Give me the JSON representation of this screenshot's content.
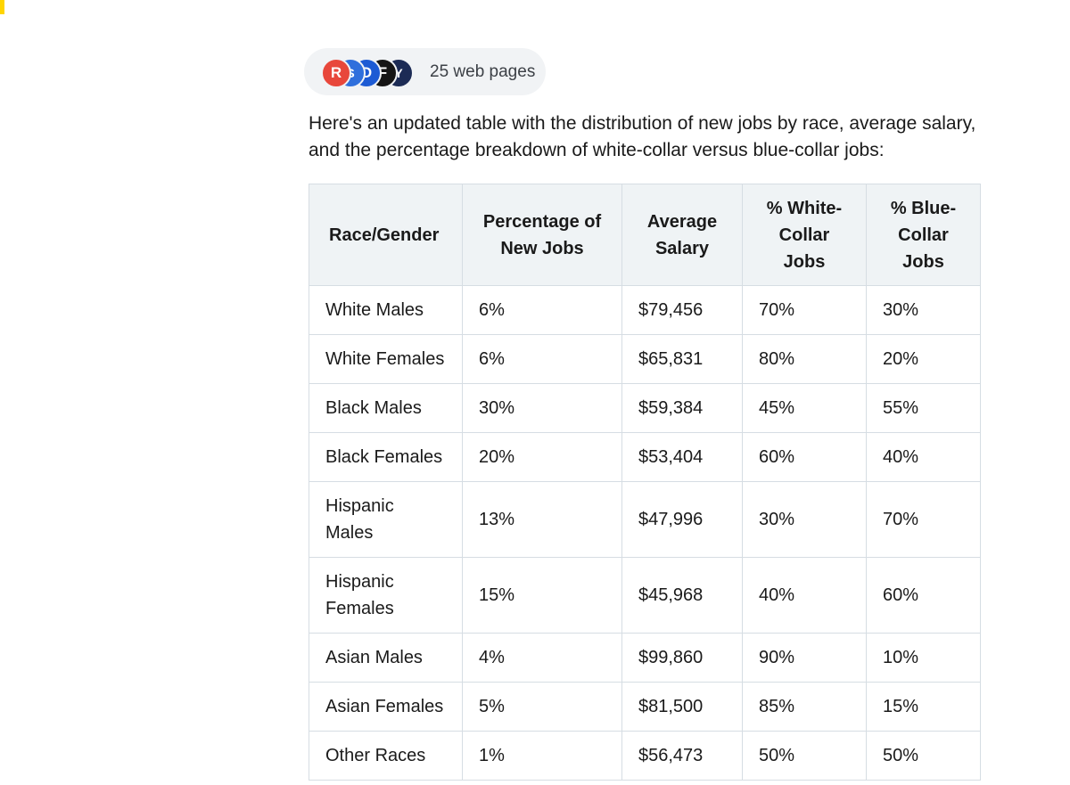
{
  "sources": {
    "label": "25 web pages",
    "favicons": [
      {
        "name": "site-favicon-1",
        "glyph": "R",
        "color": "#e8473b"
      },
      {
        "name": "site-favicon-2",
        "glyph": "S",
        "color": "#2f6fdc"
      },
      {
        "name": "site-favicon-3",
        "glyph": "D",
        "color": "#1d5bd4"
      },
      {
        "name": "site-favicon-4",
        "glyph": "F",
        "color": "#151515"
      },
      {
        "name": "site-favicon-5",
        "glyph": "Y",
        "color": "#1c2b55"
      }
    ]
  },
  "intro": "Here's an updated table with the distribution of new jobs by race, average salary, and the percentage breakdown of white-collar versus blue-collar jobs:",
  "table": {
    "headers": [
      "Race/Gender",
      "Percentage of New Jobs",
      "Average Salary",
      "% White-Collar Jobs",
      "% Blue-Collar Jobs"
    ],
    "rows": [
      [
        "White Males",
        "6%",
        "$79,456",
        "70%",
        "30%"
      ],
      [
        "White Females",
        "6%",
        "$65,831",
        "80%",
        "20%"
      ],
      [
        "Black Males",
        "30%",
        "$59,384",
        "45%",
        "55%"
      ],
      [
        "Black Females",
        "20%",
        "$53,404",
        "60%",
        "40%"
      ],
      [
        "Hispanic Males",
        "13%",
        "$47,996",
        "30%",
        "70%"
      ],
      [
        "Hispanic Females",
        "15%",
        "$45,968",
        "40%",
        "60%"
      ],
      [
        "Asian Males",
        "4%",
        "$99,860",
        "90%",
        "10%"
      ],
      [
        "Asian Females",
        "5%",
        "$81,500",
        "85%",
        "15%"
      ],
      [
        "Other Races",
        "1%",
        "$56,473",
        "50%",
        "50%"
      ]
    ]
  }
}
